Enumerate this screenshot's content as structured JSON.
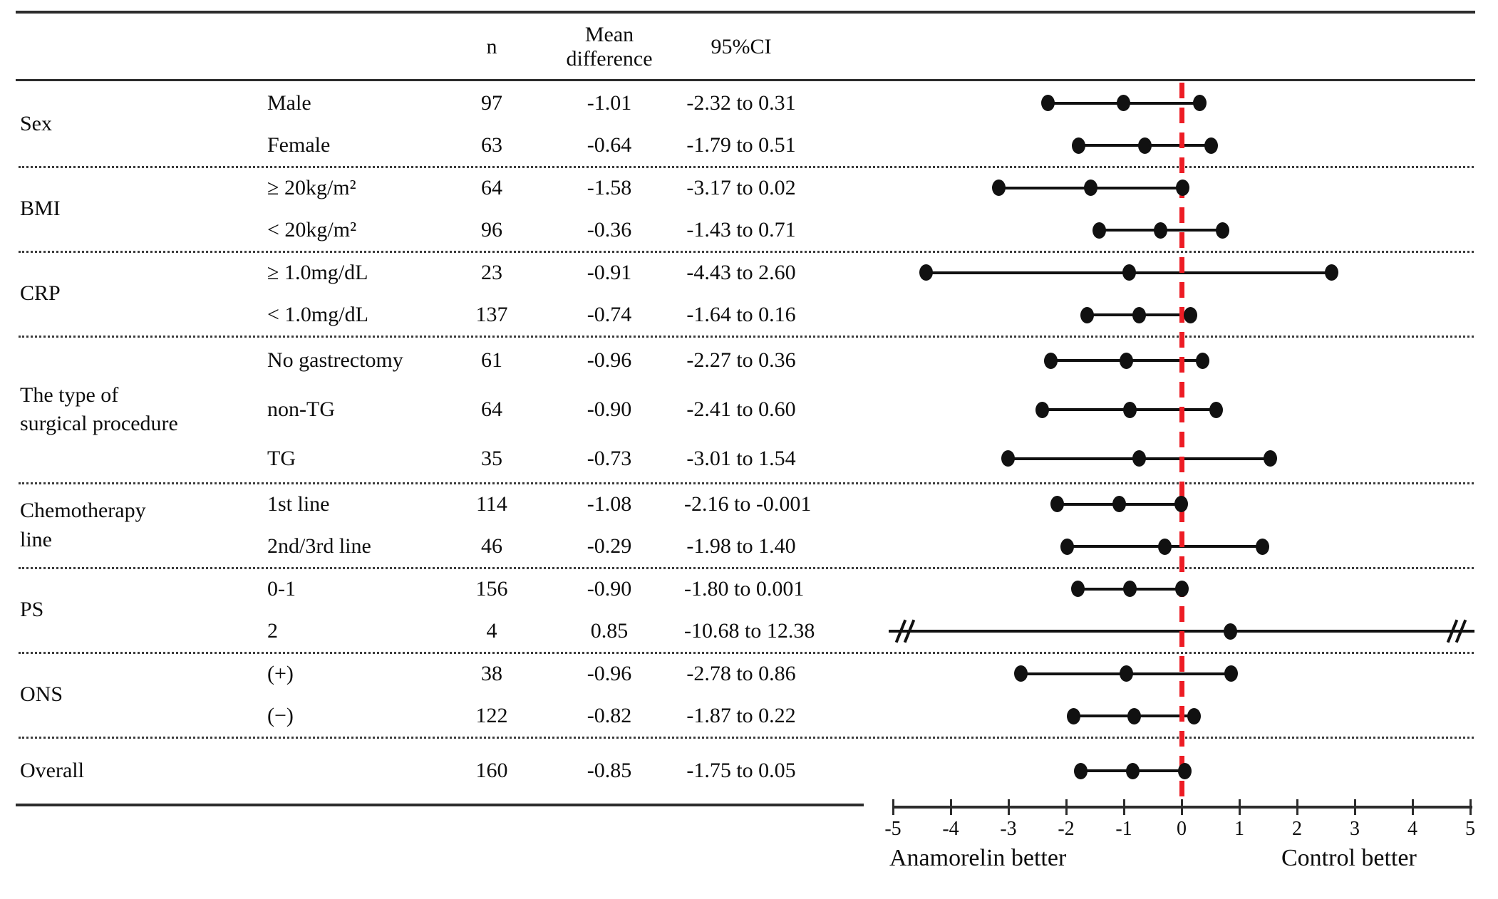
{
  "header": {
    "n": "n",
    "mean_difference": "Mean\ndifference",
    "ci": "95%CI"
  },
  "chart_data": {
    "type": "forest",
    "axis": {
      "min": -5,
      "max": 5,
      "ticks": [
        -5,
        -4,
        -3,
        -2,
        -1,
        0,
        1,
        2,
        3,
        4,
        5
      ],
      "reference_value": 0,
      "reference_line_color": "#ed1c24",
      "marker_color": "#111111"
    },
    "xlabel_left": "Anamorelin better",
    "xlabel_right": "Control better",
    "groups": [
      {
        "label": "Sex",
        "rows": [
          {
            "label": "Male",
            "n": 97,
            "mean": -1.01,
            "mean_text": "-1.01",
            "ci_low": -2.32,
            "ci_high": 0.31,
            "ci_text": "-2.32 to 0.31"
          },
          {
            "label": "Female",
            "n": 63,
            "mean": -0.64,
            "mean_text": "-0.64",
            "ci_low": -1.79,
            "ci_high": 0.51,
            "ci_text": "-1.79 to 0.51"
          }
        ]
      },
      {
        "label": "BMI",
        "rows": [
          {
            "label": "≥ 20kg/m²",
            "n": 64,
            "mean": -1.58,
            "mean_text": "-1.58",
            "ci_low": -3.17,
            "ci_high": 0.02,
            "ci_text": "-3.17 to 0.02"
          },
          {
            "label": "< 20kg/m²",
            "n": 96,
            "mean": -0.36,
            "mean_text": "-0.36",
            "ci_low": -1.43,
            "ci_high": 0.71,
            "ci_text": "-1.43 to 0.71"
          }
        ]
      },
      {
        "label": "CRP",
        "rows": [
          {
            "label": "≥ 1.0mg/dL",
            "n": 23,
            "mean": -0.91,
            "mean_text": "-0.91",
            "ci_low": -4.43,
            "ci_high": 2.6,
            "ci_text": "-4.43 to 2.60"
          },
          {
            "label": "< 1.0mg/dL",
            "n": 137,
            "mean": -0.74,
            "mean_text": "-0.74",
            "ci_low": -1.64,
            "ci_high": 0.16,
            "ci_text": "-1.64 to 0.16"
          }
        ]
      },
      {
        "label": "The type of\nsurgical procedure",
        "rows": [
          {
            "label": "No gastrectomy",
            "n": 61,
            "mean": -0.96,
            "mean_text": "-0.96",
            "ci_low": -2.27,
            "ci_high": 0.36,
            "ci_text": "-2.27 to 0.36"
          },
          {
            "label": "non-TG",
            "n": 64,
            "mean": -0.9,
            "mean_text": "-0.90",
            "ci_low": -2.41,
            "ci_high": 0.6,
            "ci_text": "-2.41 to 0.60"
          },
          {
            "label": "TG",
            "n": 35,
            "mean": -0.73,
            "mean_text": "-0.73",
            "ci_low": -3.01,
            "ci_high": 1.54,
            "ci_text": "-3.01 to 1.54"
          }
        ]
      },
      {
        "label": "Chemotherapy\nline",
        "rows": [
          {
            "label": "1st line",
            "n": 114,
            "mean": -1.08,
            "mean_text": "-1.08",
            "ci_low": -2.16,
            "ci_high": -0.001,
            "ci_text": "-2.16 to -0.001"
          },
          {
            "label": "2nd/3rd line",
            "n": 46,
            "mean": -0.29,
            "mean_text": "-0.29",
            "ci_low": -1.98,
            "ci_high": 1.4,
            "ci_text": "-1.98 to 1.40"
          }
        ]
      },
      {
        "label": "PS",
        "rows": [
          {
            "label": "0-1",
            "n": 156,
            "mean": -0.9,
            "mean_text": "-0.90",
            "ci_low": -1.8,
            "ci_high": 0.001,
            "ci_text": "-1.80 to 0.001"
          },
          {
            "label": "2",
            "n": 4,
            "mean": 0.85,
            "mean_text": "0.85",
            "ci_low": -10.68,
            "ci_high": 12.38,
            "ci_text": "-10.68 to 12.38",
            "clipped": true
          }
        ]
      },
      {
        "label": "ONS",
        "rows": [
          {
            "label": "(+)",
            "n": 38,
            "mean": -0.96,
            "mean_text": "-0.96",
            "ci_low": -2.78,
            "ci_high": 0.86,
            "ci_text": "-2.78 to 0.86"
          },
          {
            "label": "(−)",
            "n": 122,
            "mean": -0.82,
            "mean_text": "-0.82",
            "ci_low": -1.87,
            "ci_high": 0.22,
            "ci_text": "-1.87 to 0.22"
          }
        ]
      },
      {
        "label": "Overall",
        "rows": [
          {
            "label": "",
            "n": 160,
            "mean": -0.85,
            "mean_text": "-0.85",
            "ci_low": -1.75,
            "ci_high": 0.05,
            "ci_text": "-1.75 to 0.05"
          }
        ]
      }
    ]
  }
}
